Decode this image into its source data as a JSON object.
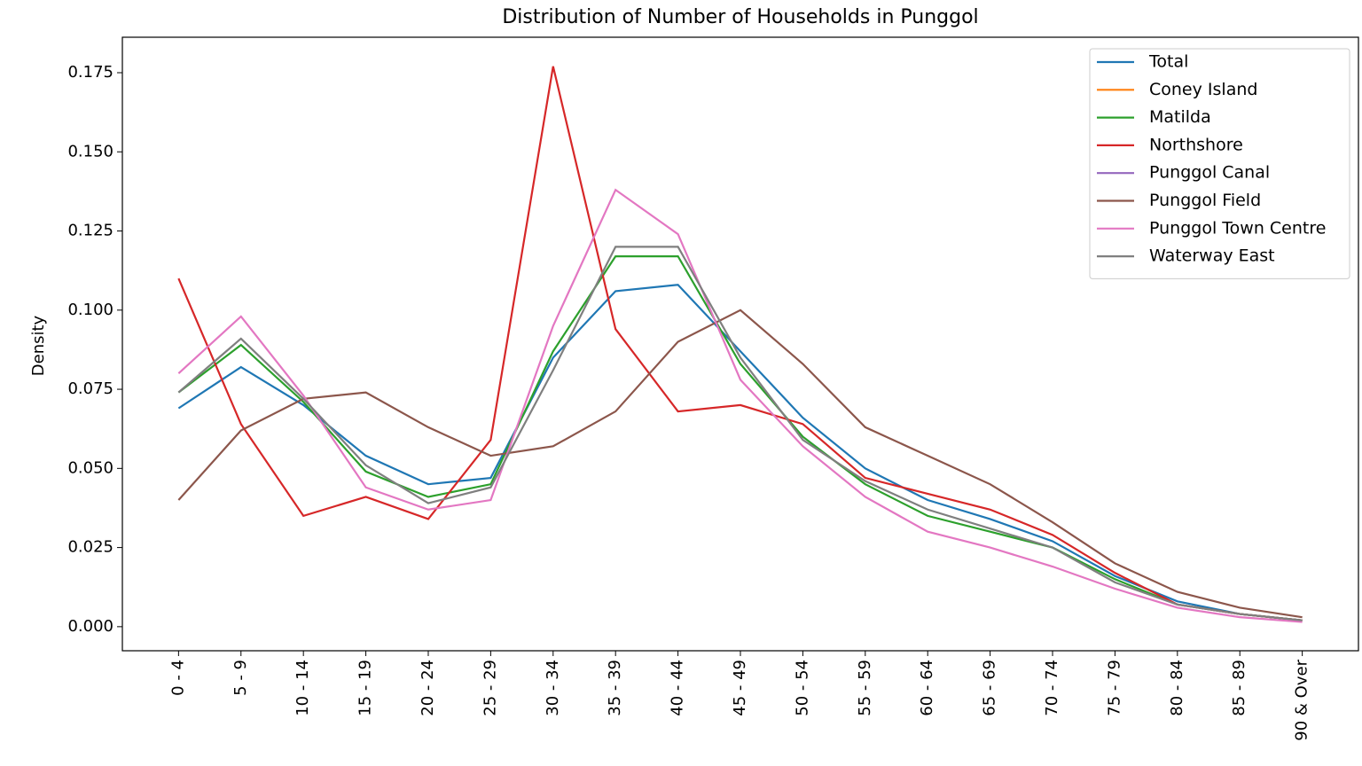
{
  "chart_data": {
    "type": "line",
    "title": "Distribution of Number of Households in Punggol",
    "y_label": "Density",
    "categories": [
      "0 - 4",
      "5 - 9",
      "10 - 14",
      "15 - 19",
      "20 - 24",
      "25 - 29",
      "30 - 34",
      "35 - 39",
      "40 - 44",
      "45 - 49",
      "50 - 54",
      "55 - 59",
      "60 - 64",
      "65 - 69",
      "70 - 74",
      "75 - 79",
      "80 - 84",
      "85 - 89",
      "90 & Over"
    ],
    "series": [
      {
        "name": "Total",
        "color": "#1f77b4",
        "values": [
          0.069,
          0.082,
          0.07,
          0.054,
          0.045,
          0.047,
          0.085,
          0.106,
          0.108,
          0.087,
          0.066,
          0.05,
          0.04,
          0.034,
          0.027,
          0.016,
          0.008,
          0.004,
          0.002
        ]
      },
      {
        "name": "Coney Island",
        "color": "#ff7f0e",
        "values": [
          null,
          null,
          null,
          null,
          null,
          null,
          null,
          null,
          null,
          null,
          null,
          null,
          null,
          null,
          null,
          null,
          null,
          null,
          null
        ]
      },
      {
        "name": "Matilda",
        "color": "#2ca02c",
        "values": [
          0.074,
          0.089,
          0.071,
          0.049,
          0.041,
          0.045,
          0.087,
          0.117,
          0.117,
          0.083,
          0.06,
          0.045,
          0.035,
          0.03,
          0.025,
          0.015,
          0.007,
          0.004,
          0.002
        ]
      },
      {
        "name": "Northshore",
        "color": "#d62728",
        "values": [
          0.11,
          0.064,
          0.035,
          0.041,
          0.034,
          0.059,
          0.177,
          0.094,
          0.068,
          0.07,
          0.064,
          0.047,
          0.042,
          0.037,
          0.029,
          0.017,
          0.007,
          0.004,
          0.002
        ]
      },
      {
        "name": "Punggol Canal",
        "color": "#9467bd",
        "values": [
          null,
          null,
          null,
          null,
          null,
          null,
          null,
          null,
          null,
          null,
          null,
          null,
          null,
          null,
          null,
          null,
          null,
          null,
          null
        ]
      },
      {
        "name": "Punggol Field",
        "color": "#8c564b",
        "values": [
          0.04,
          0.062,
          0.072,
          0.074,
          0.063,
          0.054,
          0.057,
          0.068,
          0.09,
          0.1,
          0.083,
          0.063,
          0.054,
          0.045,
          0.033,
          0.02,
          0.011,
          0.006,
          0.003
        ]
      },
      {
        "name": "Punggol Town Centre",
        "color": "#e377c2",
        "values": [
          0.08,
          0.098,
          0.073,
          0.044,
          0.037,
          0.04,
          0.095,
          0.138,
          0.124,
          0.078,
          0.057,
          0.041,
          0.03,
          0.025,
          0.019,
          0.012,
          0.006,
          0.003,
          0.0015
        ]
      },
      {
        "name": "Waterway East",
        "color": "#7f7f7f",
        "values": [
          0.074,
          0.091,
          0.072,
          0.051,
          0.039,
          0.044,
          0.081,
          0.12,
          0.12,
          0.085,
          0.059,
          0.046,
          0.037,
          0.031,
          0.025,
          0.014,
          0.007,
          0.004,
          0.002
        ]
      }
    ],
    "ylim": [
      -0.0076,
      0.1862
    ],
    "yticks": [
      {
        "value": 0,
        "label": "0.000"
      },
      0.025,
      {
        "value": 0.05,
        "label": "0.050"
      },
      0.075,
      {
        "value": 0.1,
        "label": "0.100"
      },
      0.125,
      {
        "value": 0.15,
        "label": "0.150"
      },
      0.175
    ],
    "legend": "upper right",
    "grid": false
  }
}
